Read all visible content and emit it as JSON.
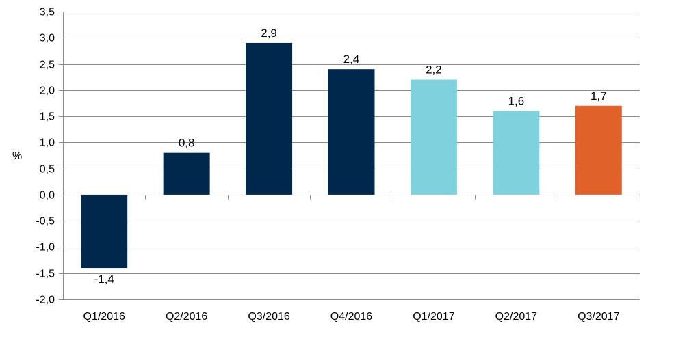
{
  "chart_data": {
    "type": "bar",
    "title": "",
    "xlabel": "",
    "ylabel": "%",
    "ylim": [
      -2.0,
      3.5
    ],
    "ytick_step": 0.5,
    "ytick_labels": [
      "-2,0",
      "-1,5",
      "-1,0",
      "-0,5",
      "0,0",
      "0,5",
      "1,0",
      "1,5",
      "2,0",
      "2,5",
      "3,0",
      "3,5"
    ],
    "grid": true,
    "legend": "none",
    "categories": [
      "Q1/2016",
      "Q2/2016",
      "Q3/2016",
      "Q4/2016",
      "Q1/2017",
      "Q2/2017",
      "Q3/2017"
    ],
    "values": [
      -1.4,
      0.8,
      2.9,
      2.4,
      2.2,
      1.6,
      1.7
    ],
    "data_labels": [
      "-1,4",
      "0,8",
      "2,9",
      "2,4",
      "2,2",
      "1,6",
      "1,7"
    ],
    "bar_colors": [
      "#00284d",
      "#00284d",
      "#00284d",
      "#00284d",
      "#7fd1de",
      "#7fd1de",
      "#e0622a"
    ]
  }
}
